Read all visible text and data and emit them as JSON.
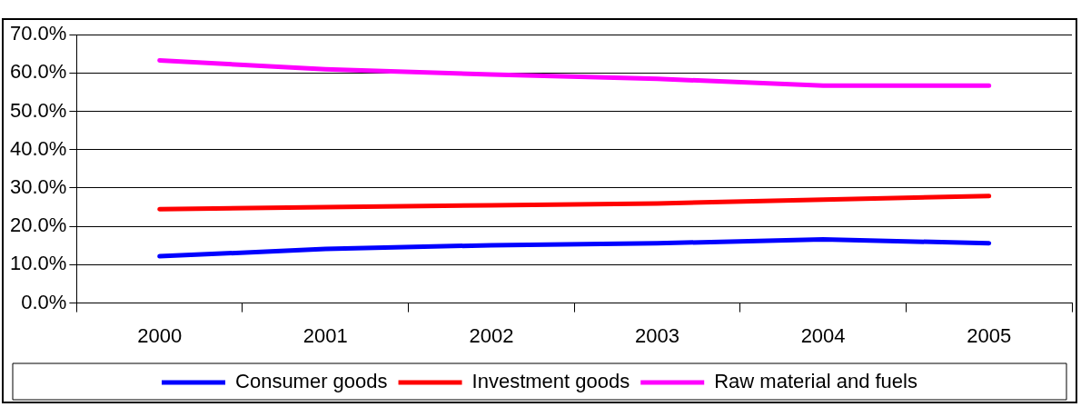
{
  "chart_data": {
    "type": "line",
    "categories": [
      "2000",
      "2001",
      "2002",
      "2003",
      "2004",
      "2005"
    ],
    "series": [
      {
        "name": "Consumer goods",
        "color": "#0000ff",
        "values": [
          12.2,
          14.1,
          15.1,
          15.6,
          16.6,
          15.6
        ]
      },
      {
        "name": "Investment goods",
        "color": "#ff0000",
        "values": [
          24.5,
          25.0,
          25.5,
          26.0,
          27.0,
          27.9
        ]
      },
      {
        "name": "Raw material and fuels",
        "color": "#ff00ff",
        "values": [
          63.3,
          61.0,
          59.6,
          58.5,
          56.7,
          56.7
        ]
      }
    ],
    "ylim": [
      0,
      70
    ],
    "yticks": [
      {
        "value": 0,
        "label": "0.0%"
      },
      {
        "value": 10,
        "label": "10.0%"
      },
      {
        "value": 20,
        "label": "20.0%"
      },
      {
        "value": 30,
        "label": "30.0%"
      },
      {
        "value": 40,
        "label": "40.0%"
      },
      {
        "value": 50,
        "label": "50.0%"
      },
      {
        "value": 60,
        "label": "60.0%"
      },
      {
        "value": 70,
        "label": "70.0%"
      }
    ],
    "grid": "y",
    "legend": "bottom",
    "marker": "none",
    "line_style": "solid"
  }
}
